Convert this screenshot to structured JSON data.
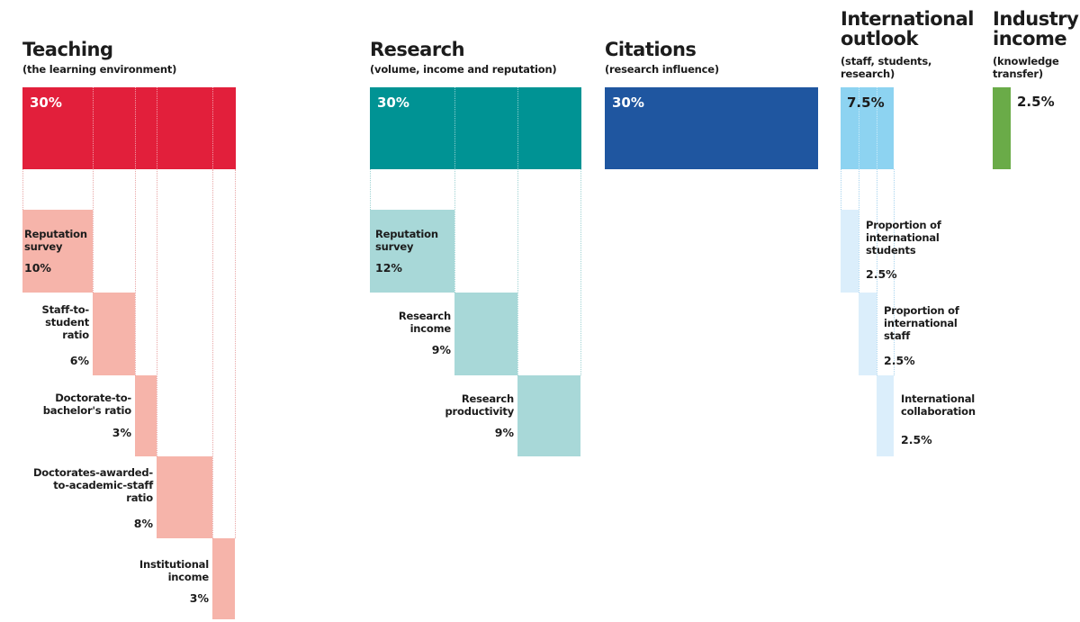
{
  "colors": {
    "teaching": "#e21f3b",
    "teaching_sub": "#f6b4aa",
    "research": "#009394",
    "research_sub": "#a8d8d8",
    "citations": "#1f56a0",
    "international": "#8dd3f1",
    "international_sub": "#dbeefb",
    "industry": "#6aab48"
  },
  "teaching": {
    "title": "Teaching",
    "subtitle": "(the learning environment)",
    "weight": "30%",
    "items": [
      {
        "label_lines": [
          "Reputation",
          "survey"
        ],
        "value": "10%"
      },
      {
        "label_lines": [
          "Staff-to-",
          "student",
          "ratio"
        ],
        "value": "6%"
      },
      {
        "label_lines": [
          "Doctorate-to-",
          "bachelor's ratio"
        ],
        "value": "3%"
      },
      {
        "label_lines": [
          "Doctorates-awarded-",
          "to-academic-staff",
          "ratio"
        ],
        "value": "8%"
      },
      {
        "label_lines": [
          "Institutional",
          "income"
        ],
        "value": "3%"
      }
    ]
  },
  "research": {
    "title": "Research",
    "subtitle": "(volume, income and reputation)",
    "weight": "30%",
    "items": [
      {
        "label_lines": [
          "Reputation",
          "survey"
        ],
        "value": "12%"
      },
      {
        "label_lines": [
          "Research",
          "income"
        ],
        "value": "9%"
      },
      {
        "label_lines": [
          "Research",
          "productivity"
        ],
        "value": "9%"
      }
    ]
  },
  "citations": {
    "title": "Citations",
    "subtitle": "(research influence)",
    "weight": "30%"
  },
  "international": {
    "title_lines": [
      "International",
      "outlook"
    ],
    "subtitle_lines": [
      "(staff, students,",
      "research)"
    ],
    "weight": "7.5%",
    "items": [
      {
        "label_lines": [
          "Proportion of",
          "international",
          "students"
        ],
        "value": "2.5%"
      },
      {
        "label_lines": [
          "Proportion of",
          "international",
          "staff"
        ],
        "value": "2.5%"
      },
      {
        "label_lines": [
          "International",
          "collaboration"
        ],
        "value": "2.5%"
      }
    ]
  },
  "industry": {
    "title_lines": [
      "Industry",
      "income"
    ],
    "subtitle_lines": [
      "(knowledge",
      "transfer)"
    ],
    "weight": "2.5%"
  }
}
